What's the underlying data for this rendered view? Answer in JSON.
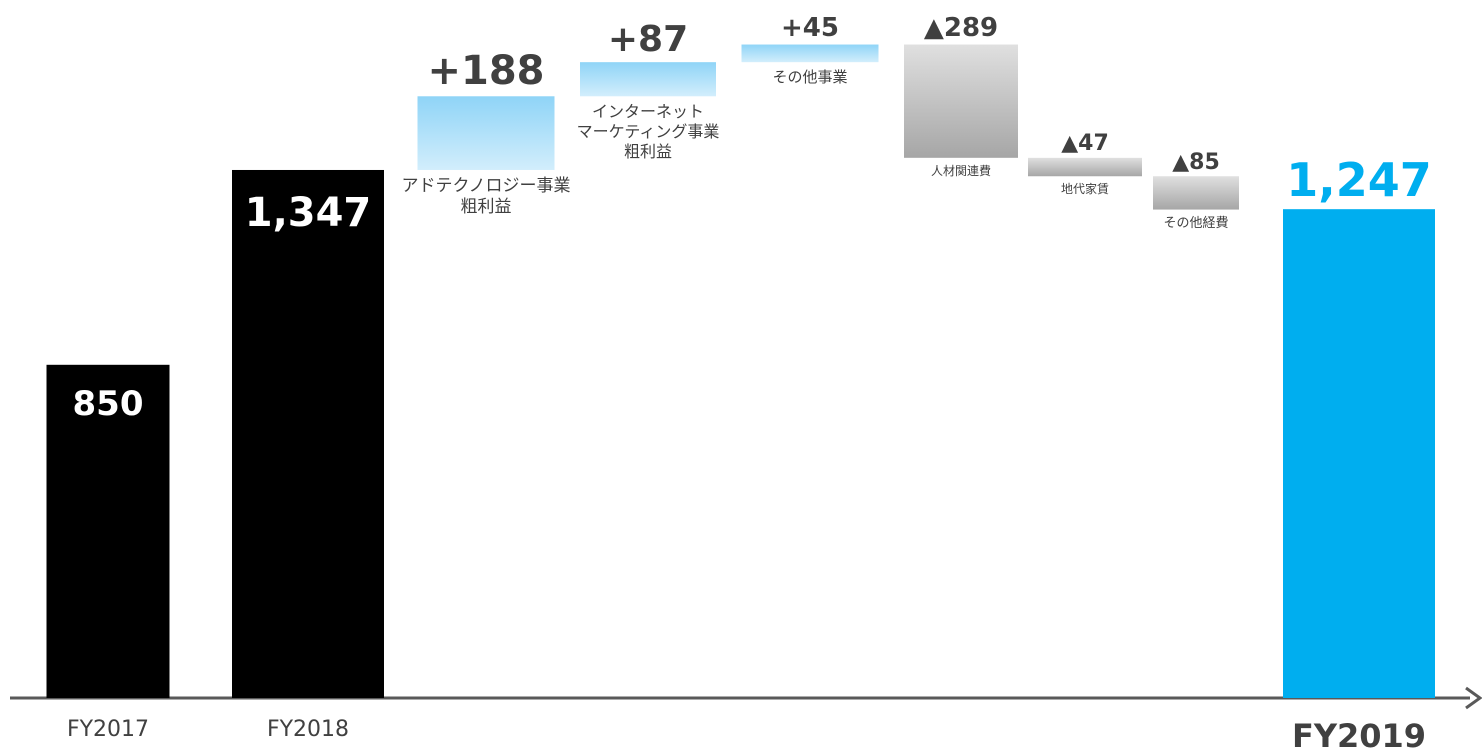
{
  "chart_data": {
    "type": "waterfall",
    "categories": [
      "FY2017",
      "FY2018",
      "アドテクノロジー事業\n粗利益",
      "インターネット\nマーケティング事業\n粗利益",
      "その他事業",
      "人材関連費",
      "地代家賃",
      "その他経費",
      "FY2019"
    ],
    "measure": [
      "absolute",
      "absolute",
      "relative",
      "relative",
      "relative",
      "relative",
      "relative",
      "relative",
      "absolute"
    ],
    "values": [
      850,
      1347,
      188,
      87,
      45,
      -289,
      -47,
      -85,
      1247
    ],
    "value_labels": [
      "850",
      "1,347",
      "+188",
      "+87",
      "+45",
      "▲289",
      "▲47",
      "▲85",
      "1,247"
    ],
    "colors": [
      "#000000",
      "#000000",
      "#8fd4f7",
      "#8fd4f7",
      "#8fd4f7",
      "#a6a6a6",
      "#a6a6a6",
      "#a6a6a6",
      "#00aeef"
    ]
  }
}
